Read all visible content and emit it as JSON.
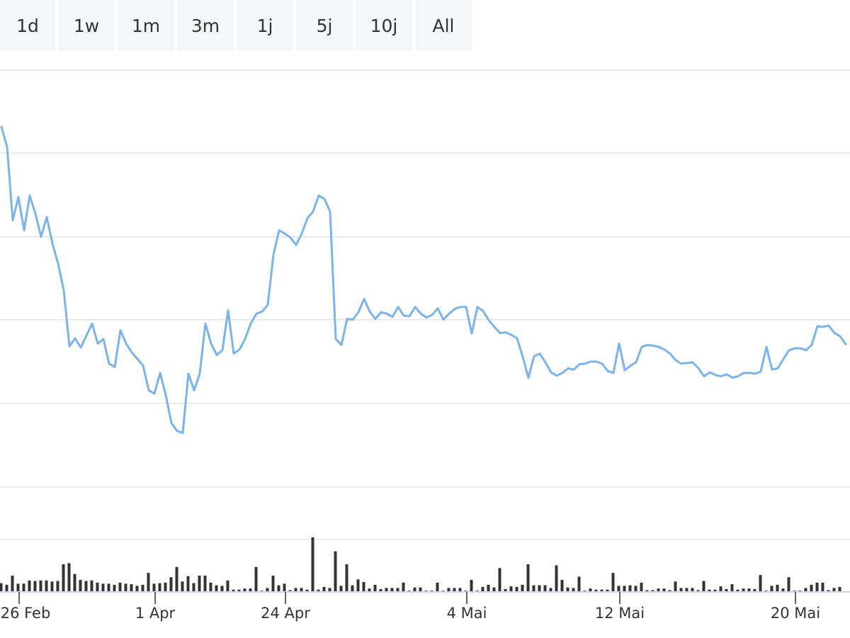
{
  "range_selector": {
    "buttons": [
      {
        "label": "1d"
      },
      {
        "label": "1w"
      },
      {
        "label": "1m"
      },
      {
        "label": "3m"
      },
      {
        "label": "1j"
      },
      {
        "label": "5j"
      },
      {
        "label": "10j"
      },
      {
        "label": "All"
      }
    ]
  },
  "colors": {
    "line": "#7cb3e8",
    "volume": "#333333",
    "grid": "#e4e4e4",
    "axis": "#ccd6eb",
    "button_bg": "#f6f7f8"
  },
  "chart_data": {
    "type": "line",
    "price_series": {
      "y_range": [
        -0.4,
        5.85
      ],
      "y_gridlines": [
        0,
        1,
        2,
        3,
        4,
        5
      ],
      "values": [
        5.0,
        4.7,
        3.6,
        3.95,
        3.45,
        3.97,
        3.7,
        3.35,
        3.65,
        3.25,
        2.95,
        2.55,
        1.71,
        1.83,
        1.69,
        1.87,
        2.05,
        1.75,
        1.82,
        1.45,
        1.4,
        1.95,
        1.75,
        1.62,
        1.52,
        1.42,
        1.05,
        1.0,
        1.31,
        0.98,
        0.56,
        0.44,
        0.41,
        1.3,
        1.05,
        1.3,
        2.05,
        1.75,
        1.58,
        1.65,
        2.25,
        1.6,
        1.66,
        1.82,
        2.05,
        2.2,
        2.23,
        2.33,
        3.08,
        3.45,
        3.4,
        3.34,
        3.23,
        3.4,
        3.63,
        3.73,
        3.97,
        3.92,
        3.73,
        1.82,
        1.73,
        2.12,
        2.11,
        2.22,
        2.42,
        2.23,
        2.12,
        2.22,
        2.2,
        2.15,
        2.3,
        2.17,
        2.16,
        2.3,
        2.2,
        2.14,
        2.18,
        2.28,
        2.11,
        2.2,
        2.27,
        2.3,
        2.3,
        1.9,
        2.3,
        2.24,
        2.1,
        2.0,
        1.91,
        1.92,
        1.88,
        1.83,
        1.55,
        1.24,
        1.56,
        1.6,
        1.47,
        1.32,
        1.27,
        1.31,
        1.38,
        1.36,
        1.44,
        1.45,
        1.48,
        1.48,
        1.45,
        1.34,
        1.31,
        1.75,
        1.35,
        1.42,
        1.47,
        1.7,
        1.73,
        1.72,
        1.7,
        1.66,
        1.6,
        1.5,
        1.45,
        1.46,
        1.47,
        1.38,
        1.26,
        1.32,
        1.28,
        1.26,
        1.29,
        1.24,
        1.26,
        1.31,
        1.31,
        1.3,
        1.33,
        1.7,
        1.36,
        1.38,
        1.52,
        1.65,
        1.68,
        1.68,
        1.65,
        1.73,
        2.01,
        2.0,
        2.02,
        1.91,
        1.86,
        1.74
      ]
    },
    "volume_series": {
      "y_max": 10,
      "values": [
        1.5,
        1.2,
        2.9,
        1.4,
        1.4,
        2.0,
        1.9,
        2.0,
        2.0,
        1.8,
        1.9,
        5.0,
        5.2,
        3.2,
        2.1,
        1.9,
        2.0,
        1.6,
        1.4,
        1.4,
        1.2,
        1.6,
        1.4,
        1.3,
        1.0,
        1.2,
        3.4,
        1.4,
        1.5,
        1.6,
        2.6,
        4.5,
        1.8,
        2.8,
        1.5,
        2.9,
        2.9,
        1.6,
        1.1,
        1.0,
        2.0,
        0.3,
        0.3,
        0.5,
        0.5,
        4.5,
        0.1,
        0.6,
        2.9,
        1.1,
        1.4,
        0.2,
        0.6,
        0.6,
        0.3,
        10.0,
        0.3,
        0.8,
        0.6,
        7.4,
        1.0,
        5.0,
        1.1,
        2.2,
        1.7,
        0.5,
        1.2,
        0.4,
        0.6,
        0.6,
        0.6,
        1.6,
        0.1,
        0.7,
        0.7,
        0.1,
        0.1,
        1.6,
        0.1,
        0.6,
        0.6,
        0.6,
        0.1,
        2.1,
        0.1,
        0.8,
        1.2,
        0.7,
        4.3,
        0.4,
        0.9,
        0.8,
        1.2,
        5.0,
        1.1,
        1.1,
        1.1,
        0.6,
        4.8,
        2.1,
        0.7,
        0.6,
        2.7,
        0.1,
        0.5,
        0.3,
        0.3,
        0.3,
        3.4,
        1.0,
        1.0,
        1.1,
        1.0,
        1.6,
        0.2,
        0.2,
        0.5,
        0.5,
        0.2,
        1.8,
        0.6,
        0.6,
        0.6,
        0.2,
        1.9,
        0.3,
        0.3,
        0.9,
        0.4,
        1.3,
        0.3,
        0.5,
        0.5,
        0.4,
        3.0,
        0.1,
        1.0,
        1.2,
        0.5,
        2.6,
        0.1,
        0.1,
        0.6,
        1.2,
        1.6,
        1.6,
        0.2,
        0.6,
        0.8
      ]
    },
    "x_ticks": [
      {
        "label": "26 Feb",
        "index": 3
      },
      {
        "label": "1 Apr",
        "index": 27
      },
      {
        "label": "24 Apr",
        "index": 50
      },
      {
        "label": "4 Mai",
        "index": 82
      },
      {
        "label": "12 Mai",
        "index": 109
      },
      {
        "label": "20 Mai",
        "index": 140
      }
    ],
    "grid": true,
    "legend": "none"
  }
}
